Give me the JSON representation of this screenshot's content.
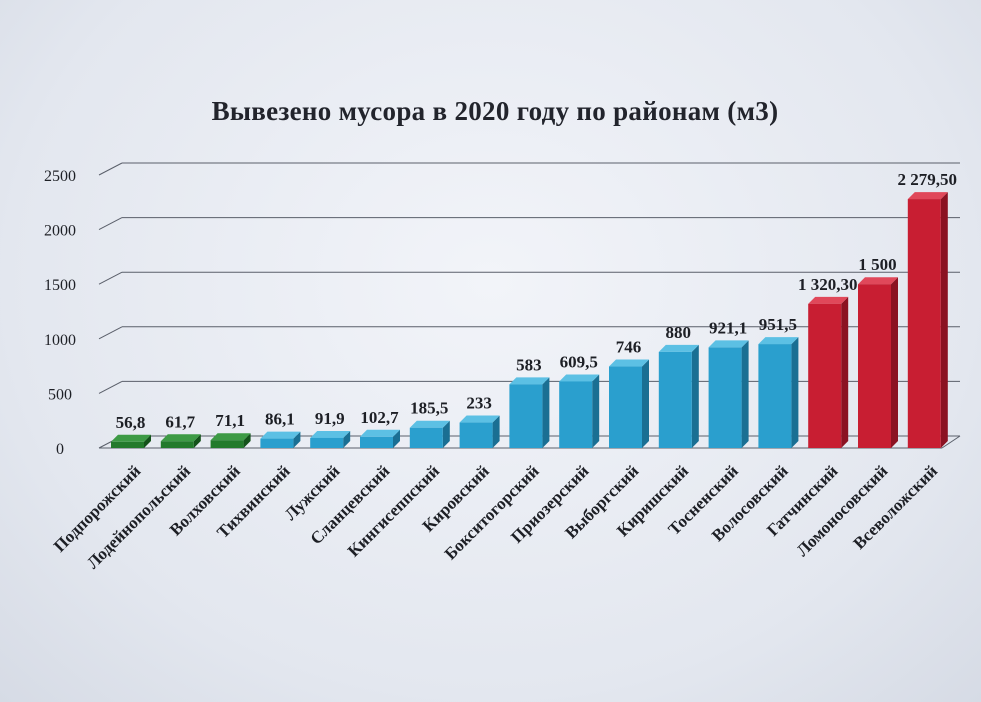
{
  "chart_data": {
    "type": "bar",
    "title": "Вывезено мусора в 2020 году по районам (м3)",
    "xlabel": "",
    "ylabel": "",
    "ylim": [
      0,
      2500
    ],
    "yticks": [
      0,
      500,
      1000,
      1500,
      2000,
      2500
    ],
    "grid": true,
    "categories": [
      "Подпорожский",
      "Лодейнопольский",
      "Волховский",
      "Тихвинский",
      "Лужский",
      "Сланцевский",
      "Кингисеппский",
      "Кировский",
      "Бокситогорский",
      "Приозерский",
      "Выборгский",
      "Киришский",
      "Тосненский",
      "Волосовский",
      "Гатчинский",
      "Ломоносовский",
      "Всеволожский"
    ],
    "values": [
      56.8,
      61.7,
      71.1,
      86.1,
      91.9,
      102.7,
      185.5,
      233,
      583,
      609.5,
      746,
      880,
      921.1,
      951.5,
      1320.3,
      1500,
      2279.5
    ],
    "value_labels": [
      "56,8",
      "61,7",
      "71,1",
      "86,1",
      "91,9",
      "102,7",
      "185,5",
      "233",
      "583",
      "609,5",
      "746",
      "880",
      "921,1",
      "951,5",
      "1 320,30",
      "1 500",
      "2 279,50"
    ],
    "bar_groups": [
      "green",
      "green",
      "green",
      "blue",
      "blue",
      "blue",
      "blue",
      "blue",
      "blue",
      "blue",
      "blue",
      "blue",
      "blue",
      "blue",
      "red",
      "red",
      "red"
    ],
    "colors": {
      "green": {
        "front": "#237a2c",
        "side": "#14521b",
        "top": "#3d9a45"
      },
      "blue": {
        "front": "#2a9fce",
        "side": "#1a6f93",
        "top": "#5cc0e4"
      },
      "red": {
        "front": "#c81e32",
        "side": "#8b1222",
        "top": "#e0485a"
      }
    }
  }
}
